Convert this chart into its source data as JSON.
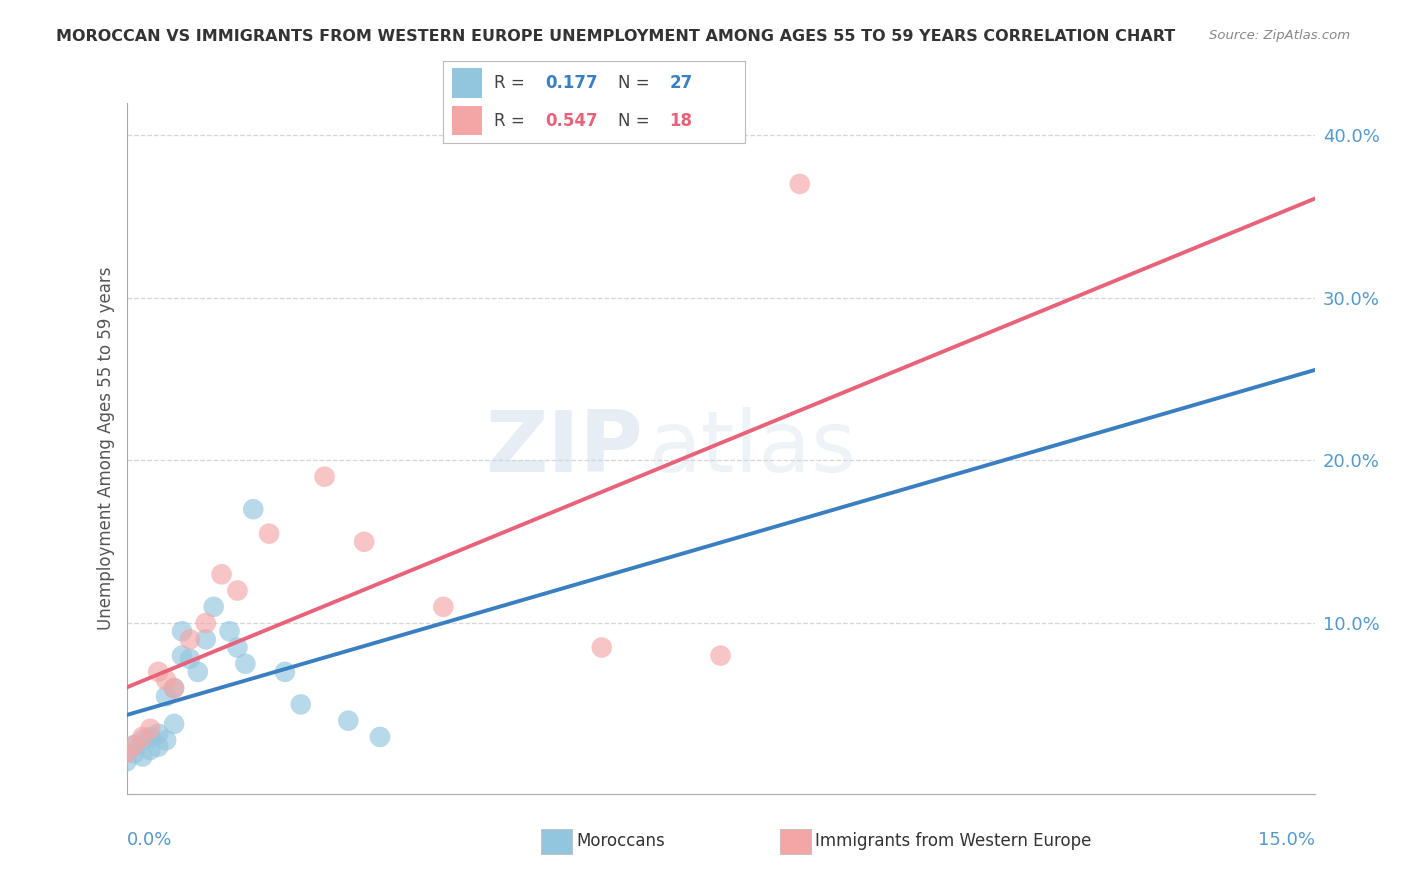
{
  "title": "MOROCCAN VS IMMIGRANTS FROM WESTERN EUROPE UNEMPLOYMENT AMONG AGES 55 TO 59 YEARS CORRELATION CHART",
  "source": "Source: ZipAtlas.com",
  "ylabel": "Unemployment Among Ages 55 to 59 years",
  "xlim": [
    0.0,
    0.15
  ],
  "ylim": [
    -0.005,
    0.42
  ],
  "blue_R": 0.177,
  "blue_N": 27,
  "pink_R": 0.547,
  "pink_N": 18,
  "blue_color": "#92c5de",
  "pink_color": "#f4a6a6",
  "blue_line_color": "#3a7fc1",
  "pink_line_color": "#e8637a",
  "legend_blue_text_color": "#3a7fc1",
  "legend_pink_text_color": "#e8637a",
  "blue_scatter_x": [
    0.0,
    0.001,
    0.001,
    0.002,
    0.002,
    0.003,
    0.003,
    0.004,
    0.004,
    0.005,
    0.005,
    0.006,
    0.006,
    0.007,
    0.007,
    0.008,
    0.009,
    0.01,
    0.011,
    0.013,
    0.014,
    0.015,
    0.016,
    0.02,
    0.022,
    0.028,
    0.032
  ],
  "blue_scatter_y": [
    0.015,
    0.02,
    0.025,
    0.018,
    0.028,
    0.022,
    0.03,
    0.024,
    0.032,
    0.028,
    0.055,
    0.038,
    0.06,
    0.08,
    0.095,
    0.078,
    0.07,
    0.09,
    0.11,
    0.095,
    0.085,
    0.075,
    0.17,
    0.07,
    0.05,
    0.04,
    0.03
  ],
  "pink_scatter_x": [
    0.0,
    0.001,
    0.002,
    0.003,
    0.004,
    0.005,
    0.006,
    0.008,
    0.01,
    0.012,
    0.014,
    0.018,
    0.025,
    0.03,
    0.04,
    0.06,
    0.075,
    0.085
  ],
  "pink_scatter_y": [
    0.02,
    0.025,
    0.03,
    0.035,
    0.07,
    0.065,
    0.06,
    0.09,
    0.1,
    0.13,
    0.12,
    0.155,
    0.19,
    0.15,
    0.11,
    0.085,
    0.08,
    0.37
  ],
  "watermark_zip": "ZIP",
  "watermark_atlas": "atlas",
  "background_color": "#ffffff",
  "plot_bg_color": "#ffffff",
  "grid_color": "#cccccc",
  "ytick_color": "#5599cc",
  "title_color": "#333333",
  "source_color": "#888888",
  "ylabel_color": "#555555"
}
